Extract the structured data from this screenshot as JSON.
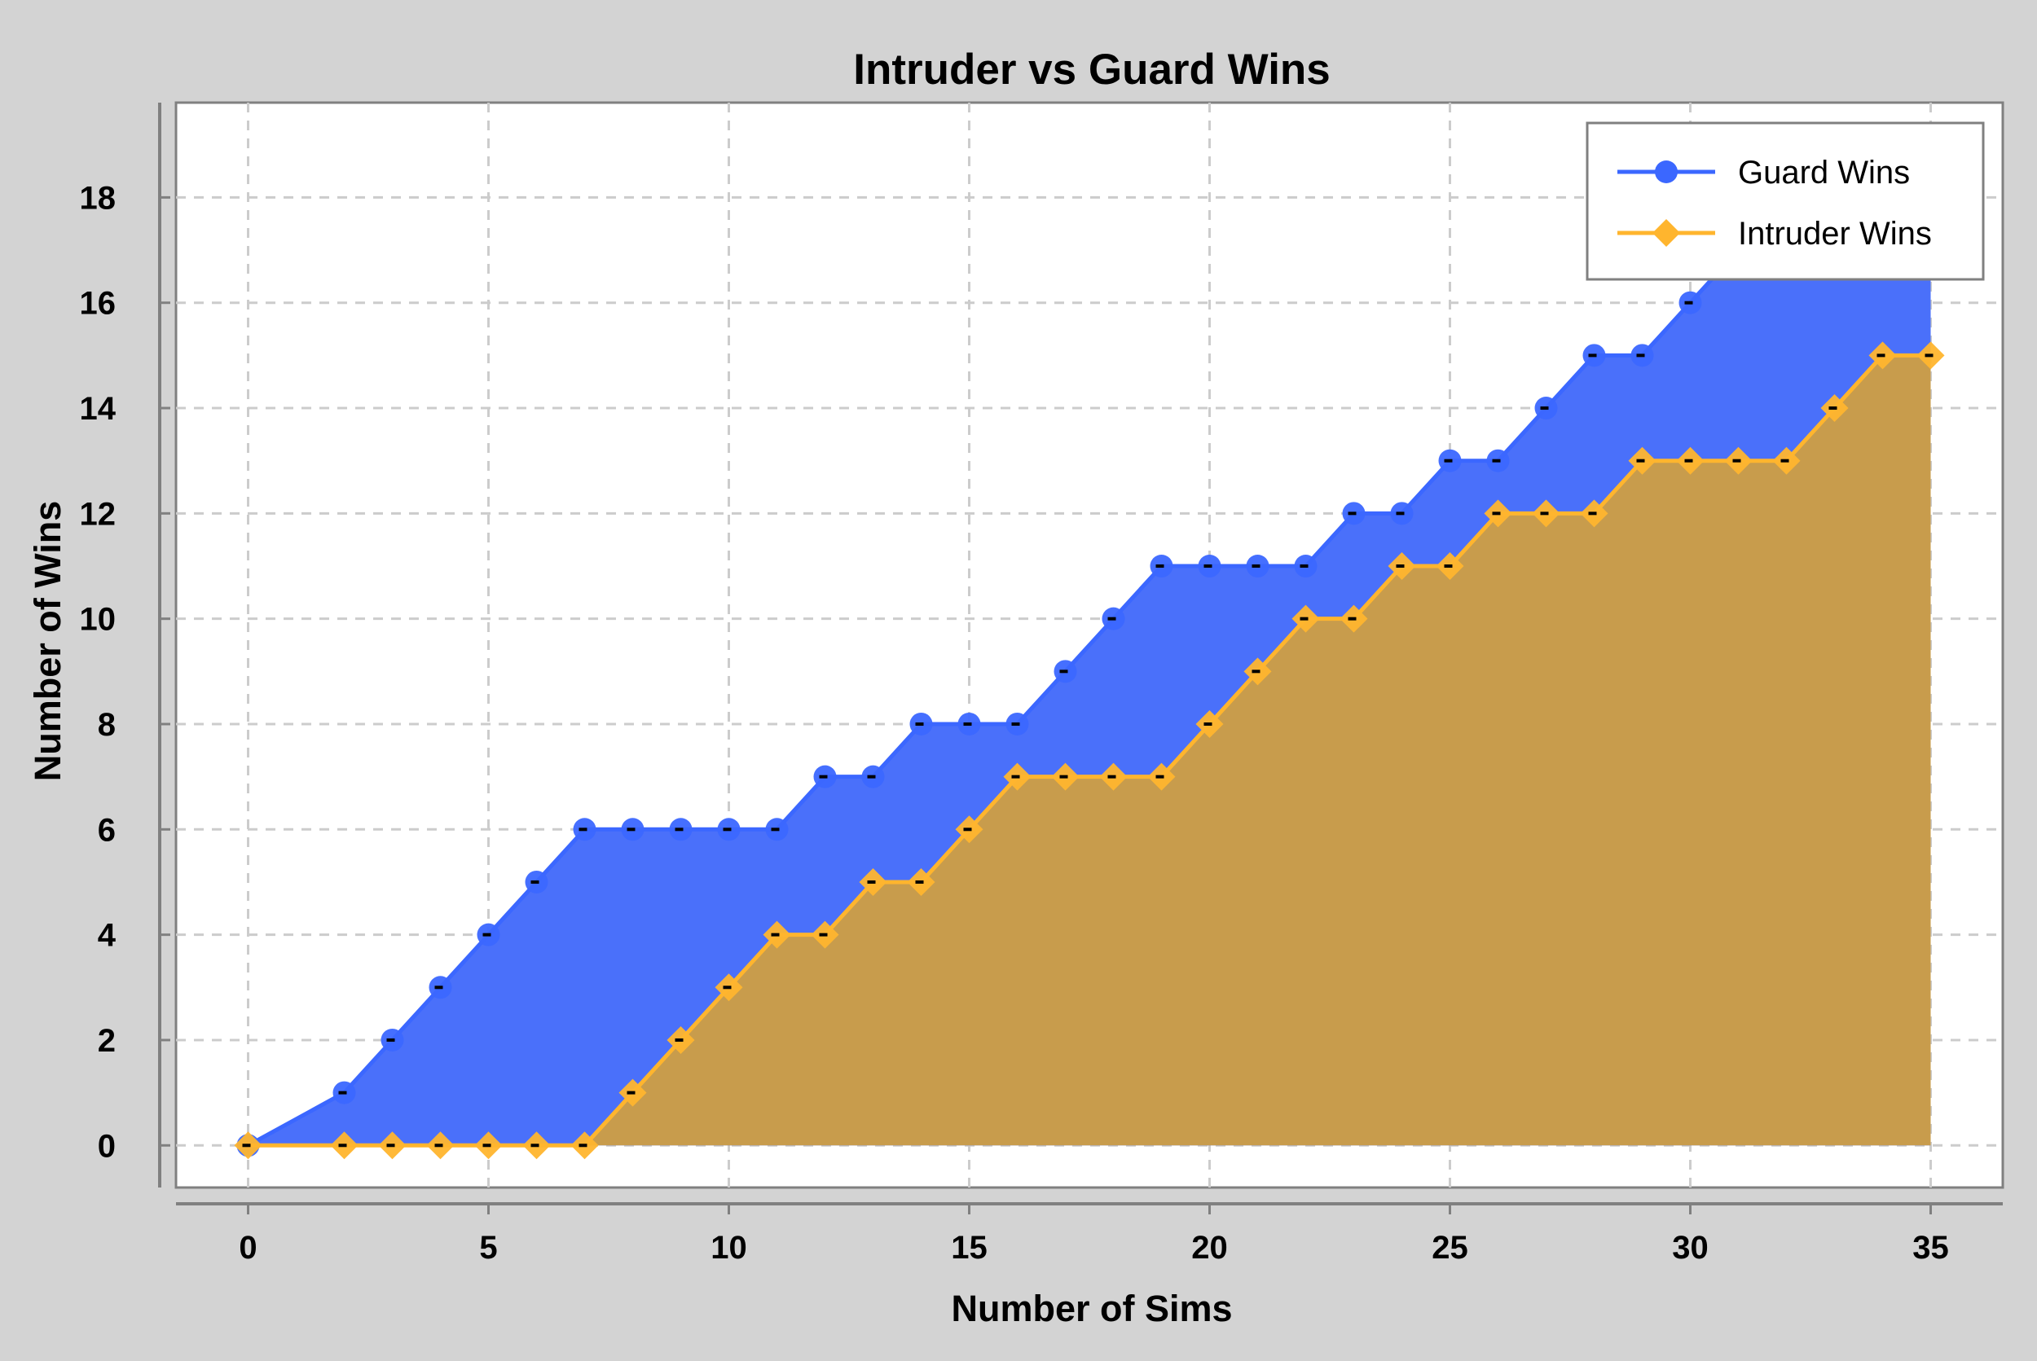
{
  "chart_data": {
    "type": "line",
    "title": "Intruder vs Guard Wins",
    "xlabel": "Number of Sims",
    "ylabel": "Number of Wins",
    "xlim": [
      -1.5,
      36.5
    ],
    "ylim": [
      -0.8,
      19.8
    ],
    "xticks": [
      0,
      5,
      10,
      15,
      20,
      25,
      30,
      35
    ],
    "yticks": [
      0,
      2,
      4,
      6,
      8,
      10,
      12,
      14,
      16,
      18
    ],
    "grid": true,
    "legend_position": "top-right",
    "x": [
      0,
      2,
      3,
      4,
      5,
      6,
      7,
      8,
      9,
      10,
      11,
      12,
      13,
      14,
      15,
      16,
      17,
      18,
      19,
      20,
      21,
      22,
      23,
      24,
      25,
      26,
      27,
      28,
      29,
      30,
      31,
      32,
      33,
      34,
      35
    ],
    "series": [
      {
        "name": "Guard Wins",
        "color": "#3b67ff",
        "fill_color": "#4a70fa",
        "marker": "circle",
        "values": [
          0,
          1,
          2,
          3,
          4,
          5,
          6,
          6,
          6,
          6,
          6,
          7,
          7,
          8,
          8,
          8,
          9,
          10,
          11,
          11,
          11,
          11,
          12,
          12,
          13,
          13,
          14,
          15,
          15,
          16,
          17,
          17,
          17,
          17,
          17
        ]
      },
      {
        "name": "Intruder Wins",
        "color": "#ffb52e",
        "fill_color": "#c89c4c",
        "marker": "diamond",
        "values": [
          0,
          0,
          0,
          0,
          0,
          0,
          0,
          1,
          2,
          3,
          4,
          4,
          5,
          5,
          6,
          7,
          7,
          7,
          7,
          8,
          9,
          10,
          10,
          11,
          11,
          12,
          12,
          12,
          13,
          13,
          13,
          13,
          14,
          15,
          15
        ]
      }
    ]
  }
}
